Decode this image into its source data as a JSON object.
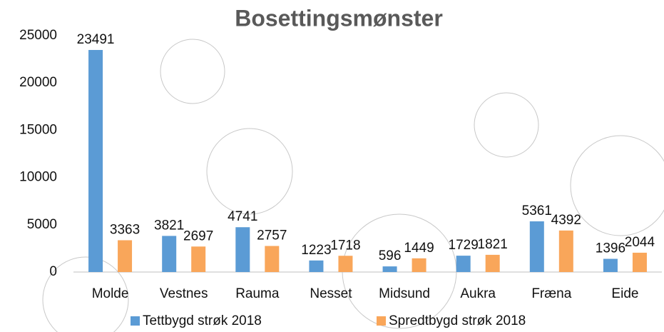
{
  "chart_data": {
    "type": "bar",
    "title": "Bosettingsmønster",
    "categories": [
      "Molde",
      "Vestnes",
      "Rauma",
      "Nesset",
      "Midsund",
      "Aukra",
      "Fræna",
      "Eide"
    ],
    "series": [
      {
        "name": "Tettbygd strøk 2018",
        "color": "#5b9bd5",
        "values": [
          23491,
          3821,
          4741,
          1223,
          596,
          1729,
          5361,
          1396
        ]
      },
      {
        "name": "Spredtbygd strøk 2018",
        "color": "#f9a65a",
        "values": [
          3363,
          2697,
          2757,
          1718,
          1449,
          1821,
          4392,
          2044
        ]
      }
    ],
    "ylim": [
      0,
      25000
    ],
    "yticks": [
      0,
      5000,
      10000,
      15000,
      20000,
      25000
    ],
    "grid": false,
    "legend": "bottom"
  }
}
